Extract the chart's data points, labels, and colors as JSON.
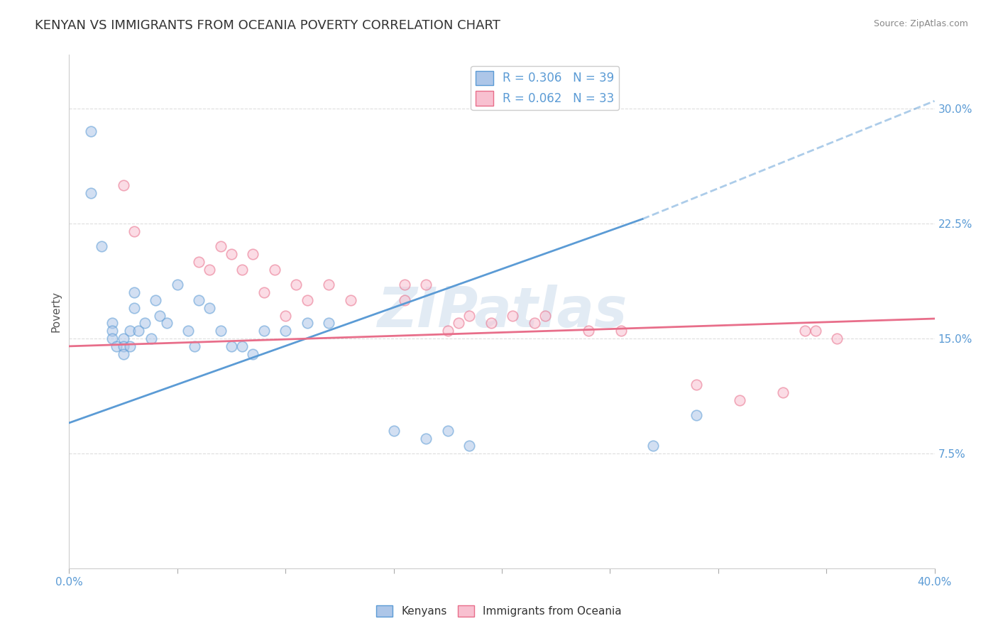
{
  "title": "KENYAN VS IMMIGRANTS FROM OCEANIA POVERTY CORRELATION CHART",
  "source": "Source: ZipAtlas.com",
  "ylabel": "Poverty",
  "watermark": "ZIPatlas",
  "xlim": [
    0.0,
    0.4
  ],
  "ylim": [
    0.0,
    0.335
  ],
  "xticks": [
    0.0,
    0.05,
    0.1,
    0.15,
    0.2,
    0.25,
    0.3,
    0.35,
    0.4
  ],
  "yticks": [
    0.075,
    0.15,
    0.225,
    0.3
  ],
  "legend_entries": [
    {
      "label": "R = 0.306   N = 39",
      "color": "#adc6e8"
    },
    {
      "label": "R = 0.062   N = 33",
      "color": "#f8c0d0"
    }
  ],
  "kenyans_x": [
    0.01,
    0.01,
    0.015,
    0.02,
    0.02,
    0.02,
    0.022,
    0.025,
    0.025,
    0.025,
    0.028,
    0.028,
    0.03,
    0.03,
    0.032,
    0.035,
    0.038,
    0.04,
    0.042,
    0.045,
    0.05,
    0.055,
    0.058,
    0.06,
    0.065,
    0.07,
    0.075,
    0.08,
    0.085,
    0.09,
    0.1,
    0.11,
    0.12,
    0.15,
    0.165,
    0.175,
    0.185,
    0.27,
    0.29
  ],
  "kenyans_y": [
    0.285,
    0.245,
    0.21,
    0.16,
    0.155,
    0.15,
    0.145,
    0.15,
    0.145,
    0.14,
    0.155,
    0.145,
    0.18,
    0.17,
    0.155,
    0.16,
    0.15,
    0.175,
    0.165,
    0.16,
    0.185,
    0.155,
    0.145,
    0.175,
    0.17,
    0.155,
    0.145,
    0.145,
    0.14,
    0.155,
    0.155,
    0.16,
    0.16,
    0.09,
    0.085,
    0.09,
    0.08,
    0.08,
    0.1
  ],
  "oceania_x": [
    0.025,
    0.03,
    0.06,
    0.065,
    0.07,
    0.075,
    0.08,
    0.085,
    0.09,
    0.095,
    0.1,
    0.105,
    0.11,
    0.12,
    0.13,
    0.155,
    0.155,
    0.165,
    0.175,
    0.18,
    0.185,
    0.195,
    0.205,
    0.215,
    0.22,
    0.24,
    0.255,
    0.29,
    0.31,
    0.33,
    0.34,
    0.345,
    0.355
  ],
  "oceania_y": [
    0.25,
    0.22,
    0.2,
    0.195,
    0.21,
    0.205,
    0.195,
    0.205,
    0.18,
    0.195,
    0.165,
    0.185,
    0.175,
    0.185,
    0.175,
    0.185,
    0.175,
    0.185,
    0.155,
    0.16,
    0.165,
    0.16,
    0.165,
    0.16,
    0.165,
    0.155,
    0.155,
    0.12,
    0.11,
    0.115,
    0.155,
    0.155,
    0.15
  ],
  "blue_line_x0": 0.0,
  "blue_line_x1": 0.265,
  "blue_line_y0": 0.095,
  "blue_line_y1": 0.228,
  "pink_line_x0": 0.0,
  "pink_line_x1": 0.4,
  "pink_line_y0": 0.145,
  "pink_line_y1": 0.163,
  "dash_line_x0": 0.265,
  "dash_line_x1": 0.4,
  "dash_line_y0": 0.228,
  "dash_line_y1": 0.305,
  "blue_color": "#5b9bd5",
  "pink_color": "#e86e8a",
  "blue_fill": "#adc6e8",
  "pink_fill": "#f8c0d0",
  "grid_color": "#dddddd",
  "background_color": "#ffffff",
  "title_fontsize": 13,
  "axis_label_fontsize": 11,
  "tick_fontsize": 11,
  "scatter_size": 110,
  "scatter_alpha": 0.55,
  "line_width": 2.0
}
